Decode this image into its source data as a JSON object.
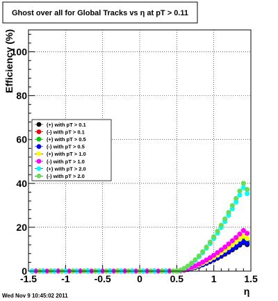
{
  "chart_data": {
    "type": "scatter",
    "title": "Ghost over all for Global Tracks vs η at pT > 0.11",
    "xlabel": "η",
    "ylabel": "Efficiency (%)",
    "xlim": [
      -1.5,
      1.5
    ],
    "ylim": [
      0,
      110
    ],
    "x_ticks": [
      -1.5,
      -1,
      -0.5,
      0,
      0.5,
      1,
      1.5
    ],
    "x_tick_labels": [
      "-1.5",
      "-1",
      "-0.5",
      "0",
      "0.5",
      "1",
      "1.5"
    ],
    "y_ticks": [
      0,
      20,
      40,
      60,
      80,
      100
    ],
    "y_tick_labels": [
      "0",
      "20",
      "40",
      "60",
      "80",
      "100"
    ],
    "grid": true,
    "legend_position": "left-center",
    "series": [
      {
        "name": "(+) with pT > 0.1",
        "color": "#000000",
        "scale": 13.0
      },
      {
        "name": "(-) with pT > 0.1",
        "color": "#ff0000",
        "scale": 14.5
      },
      {
        "name": "(+) with pT > 0.5",
        "color": "#00cc00",
        "scale": 14.0
      },
      {
        "name": "(-) with pT > 0.5",
        "color": "#0000ff",
        "scale": 13.5
      },
      {
        "name": "(+) with pT > 1.0",
        "color": "#ffff00",
        "scale": 16.0
      },
      {
        "name": "(-) with pT > 1.0",
        "color": "#ff00ff",
        "scale": 18.5
      },
      {
        "name": "(+) with pT > 2.0",
        "color": "#00ffff",
        "scale": 38.0
      },
      {
        "name": "(-) with pT > 2.0",
        "color": "#66dd55",
        "scale": 40.0
      }
    ]
  },
  "footer": "Wed Nov  9 10:45:02 2011"
}
